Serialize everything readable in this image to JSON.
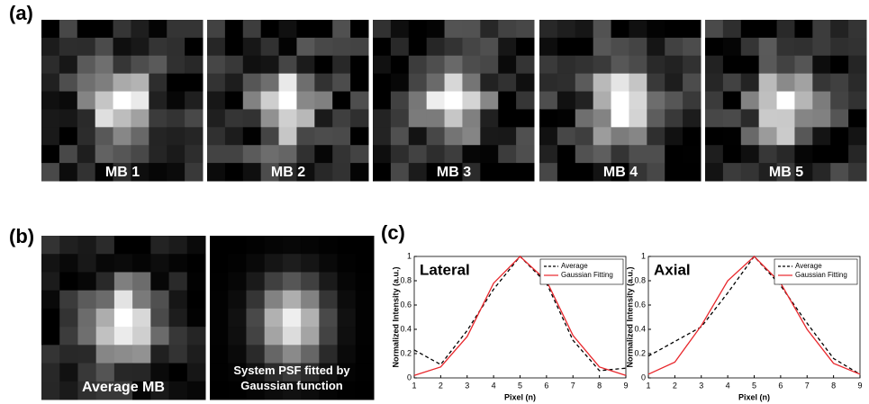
{
  "panel_a": {
    "label": "(a)",
    "images": [
      {
        "label": "MB 1"
      },
      {
        "label": "MB 2"
      },
      {
        "label": "MB 3"
      },
      {
        "label": "MB 4"
      },
      {
        "label": "MB 5"
      }
    ]
  },
  "panel_b": {
    "label": "(b)",
    "images": [
      {
        "label": "Average MB"
      },
      {
        "label": "System PSF fitted by Gaussian function"
      }
    ]
  },
  "panel_c": {
    "label": "(c)"
  },
  "chart_data": [
    {
      "type": "line",
      "title": "Lateral",
      "xlabel": "Pixel (n)",
      "ylabel": "Normalized Intensity (a.u.)",
      "x": [
        1,
        2,
        3,
        4,
        5,
        6,
        7,
        8,
        9
      ],
      "series": [
        {
          "name": "Average",
          "color": "#000000",
          "linestyle": "dashed",
          "values": [
            0.23,
            0.11,
            0.39,
            0.73,
            1,
            0.78,
            0.31,
            0.06,
            0.08
          ]
        },
        {
          "name": "Gaussian Fitting",
          "color": "#e8262b",
          "linestyle": "solid",
          "values": [
            0.02,
            0.09,
            0.34,
            0.78,
            1,
            0.8,
            0.35,
            0.09,
            0.02
          ]
        }
      ],
      "xlim": [
        1,
        9
      ],
      "ylim": [
        0,
        1
      ],
      "xticks": [
        1,
        2,
        3,
        4,
        5,
        6,
        7,
        8,
        9
      ],
      "yticks": [
        0,
        0.2,
        0.4,
        0.6,
        0.8,
        1
      ],
      "legend": "upper right"
    },
    {
      "type": "line",
      "title": "Axial",
      "xlabel": "Pixel (n)",
      "ylabel": "Normalized Intensity (a.u.)",
      "x": [
        1,
        2,
        3,
        4,
        5,
        6,
        7,
        8,
        9
      ],
      "series": [
        {
          "name": "Average",
          "color": "#000000",
          "linestyle": "dashed",
          "values": [
            0.18,
            0.3,
            0.42,
            0.7,
            1,
            0.76,
            0.45,
            0.16,
            0.03
          ]
        },
        {
          "name": "Gaussian Fitting",
          "color": "#e8262b",
          "linestyle": "solid",
          "values": [
            0.03,
            0.13,
            0.43,
            0.8,
            1,
            0.78,
            0.4,
            0.12,
            0.03
          ]
        }
      ],
      "xlim": [
        1,
        9
      ],
      "ylim": [
        0,
        1
      ],
      "xticks": [
        1,
        2,
        3,
        4,
        5,
        6,
        7,
        8,
        9
      ],
      "yticks": [
        0,
        0.2,
        0.4,
        0.6,
        0.8,
        1
      ],
      "legend": "upper right"
    }
  ]
}
